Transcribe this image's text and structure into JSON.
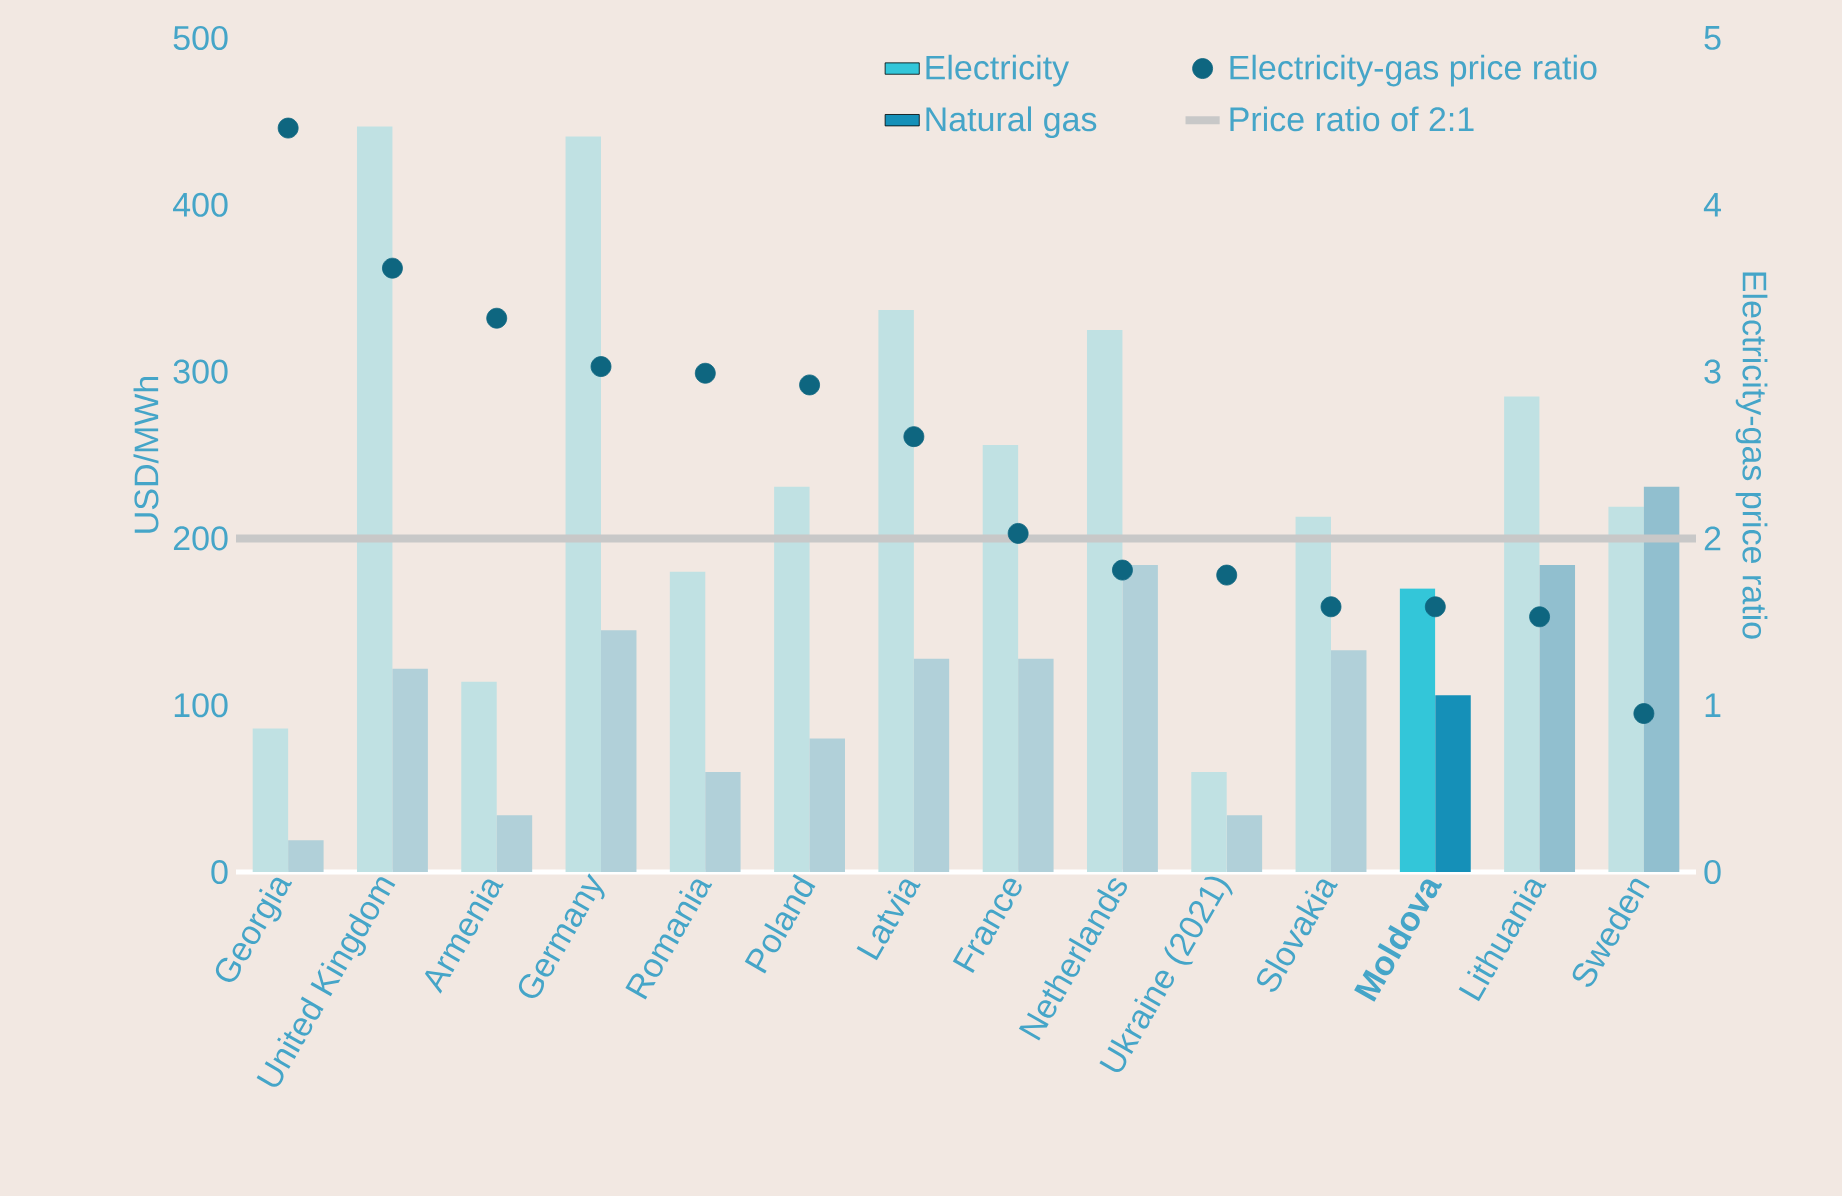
{
  "chart_data": {
    "type": "bar",
    "ylabel": "USD/MWh",
    "y2label": "Electricity-gas price ratio",
    "categories": [
      "Georgia",
      "United Kingdom",
      "Armenia",
      "Germany",
      "Romania",
      "Poland",
      "Latvia",
      "France",
      "Netherlands",
      "Ukraine (2021)",
      "Slovakia",
      "**Moldova**",
      "Lithuania",
      "Sweden"
    ],
    "series": [
      {
        "name": "Electricity",
        "color": "#33c6d9",
        "colors": [
          "#c0e1e3",
          "#c0e1e3",
          "#c0e1e3",
          "#c0e1e3",
          "#c0e1e3",
          "#c0e1e3",
          "#c0e1e3",
          "#c0e1e3",
          "#c0e1e3",
          "#c0e1e3",
          "#c0e1e3",
          "#33c6d9",
          "#c0e1e3",
          "#c0e1e3"
        ],
        "values": [
          86,
          447,
          114,
          441,
          180,
          231,
          337,
          256,
          325,
          60,
          213,
          170,
          285,
          219
        ]
      },
      {
        "name": "Natural gas",
        "color": "#1590b8",
        "colors": [
          "#b1d0d9",
          "#b1d0d9",
          "#b1d0d9",
          "#b1d0d9",
          "#b1d0d9",
          "#b1d0d9",
          "#b1d0d9",
          "#b1d0d9",
          "#b1d0d9",
          "#b1d0d9",
          "#b1d0d9",
          "#1590b8",
          "#91bfcf",
          "#91bfcf"
        ],
        "values": [
          19,
          122,
          34,
          145,
          60,
          80,
          128,
          128,
          184,
          34,
          133,
          106,
          184,
          231
        ]
      },
      {
        "name": "Electricity-gas price ratio",
        "type": "scatter",
        "axis": "y2",
        "color": "#0e6680",
        "values": [
          4.46,
          3.62,
          3.32,
          3.03,
          2.99,
          2.92,
          2.61,
          2.03,
          1.81,
          1.78,
          1.59,
          1.59,
          1.53,
          0.95
        ]
      }
    ],
    "marker": "circle",
    "ylim": [
      0,
      500
    ],
    "yticks": [
      0,
      100,
      200,
      300,
      400,
      500
    ],
    "y2lim": [
      0,
      5
    ],
    "y2ticks": [
      0,
      1,
      2,
      3,
      4,
      5
    ],
    "ref_lines": [
      {
        "axis": "y2",
        "value": 2,
        "label": "Price ratio of 2:1",
        "color": "#c8c8c8"
      }
    ],
    "legend": "top right"
  }
}
